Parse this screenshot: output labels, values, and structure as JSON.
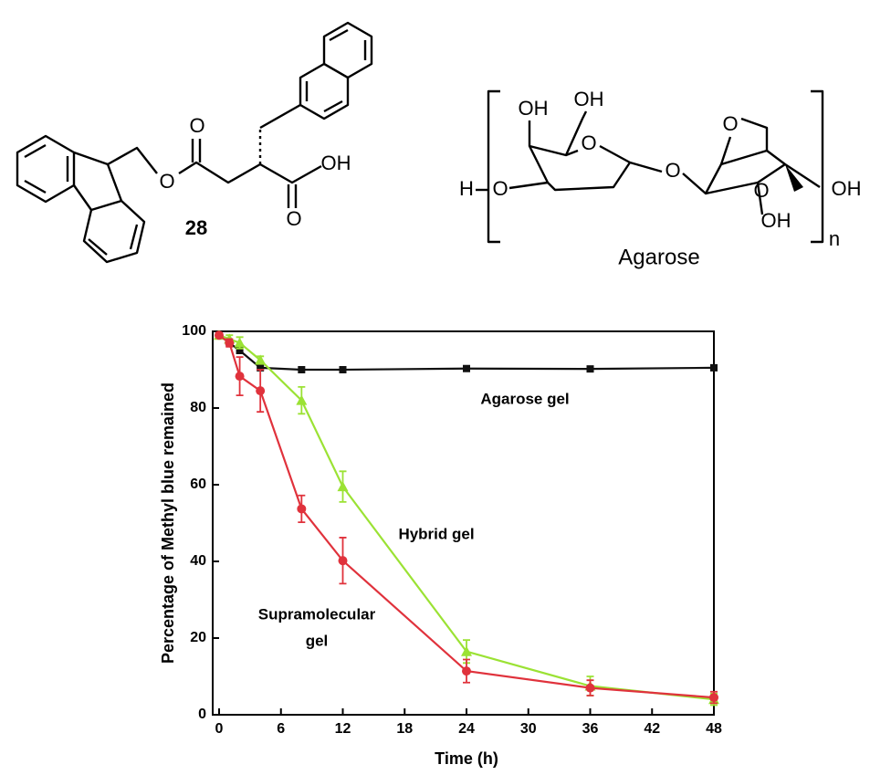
{
  "structures": {
    "compound": {
      "label": "28",
      "atoms": [
        "O",
        "O",
        "OH",
        "O"
      ]
    },
    "agarose": {
      "name": "Agarose",
      "atoms": [
        "OH",
        "OH",
        "O",
        "H",
        "O",
        "O",
        "O",
        "O",
        "OH",
        "OH",
        "n"
      ]
    }
  },
  "chart_data": {
    "type": "line",
    "x_label": "Time (h)",
    "y_label": "Percentage of Methyl blue remained",
    "x": [
      0,
      1,
      2,
      4,
      8,
      12,
      24,
      36,
      48
    ],
    "xlim": [
      0,
      48
    ],
    "xticks": [
      0,
      6,
      12,
      18,
      24,
      30,
      36,
      42,
      48
    ],
    "ylim": [
      0,
      100
    ],
    "yticks": [
      0,
      20,
      40,
      60,
      80,
      100
    ],
    "series": [
      {
        "name": "Agarose gel",
        "color": "#111111",
        "marker": "square",
        "values": [
          99,
          97,
          95,
          90.5,
          90,
          90,
          90.3,
          90.2,
          90.5
        ]
      },
      {
        "name": "Hybrid gel",
        "color": "#9be234",
        "marker": "triangle",
        "values": [
          99,
          98,
          97,
          92.5,
          82,
          59.5,
          16.5,
          7.5,
          4
        ],
        "errors": [
          0.5,
          1,
          1.5,
          1,
          3.5,
          4,
          3,
          2.5,
          1.5
        ]
      },
      {
        "name": "Supramolecular gel",
        "color": "#e0323c",
        "marker": "circle",
        "values": [
          99,
          97,
          88.3,
          84.5,
          53.7,
          40.2,
          11.4,
          7,
          4.5
        ],
        "errors": [
          0.5,
          1,
          5,
          5.5,
          3.5,
          6,
          3,
          2,
          1.5
        ]
      }
    ],
    "annotations": [
      "Agarose gel",
      "Hybrid gel",
      "Supramolecular",
      "gel"
    ]
  }
}
